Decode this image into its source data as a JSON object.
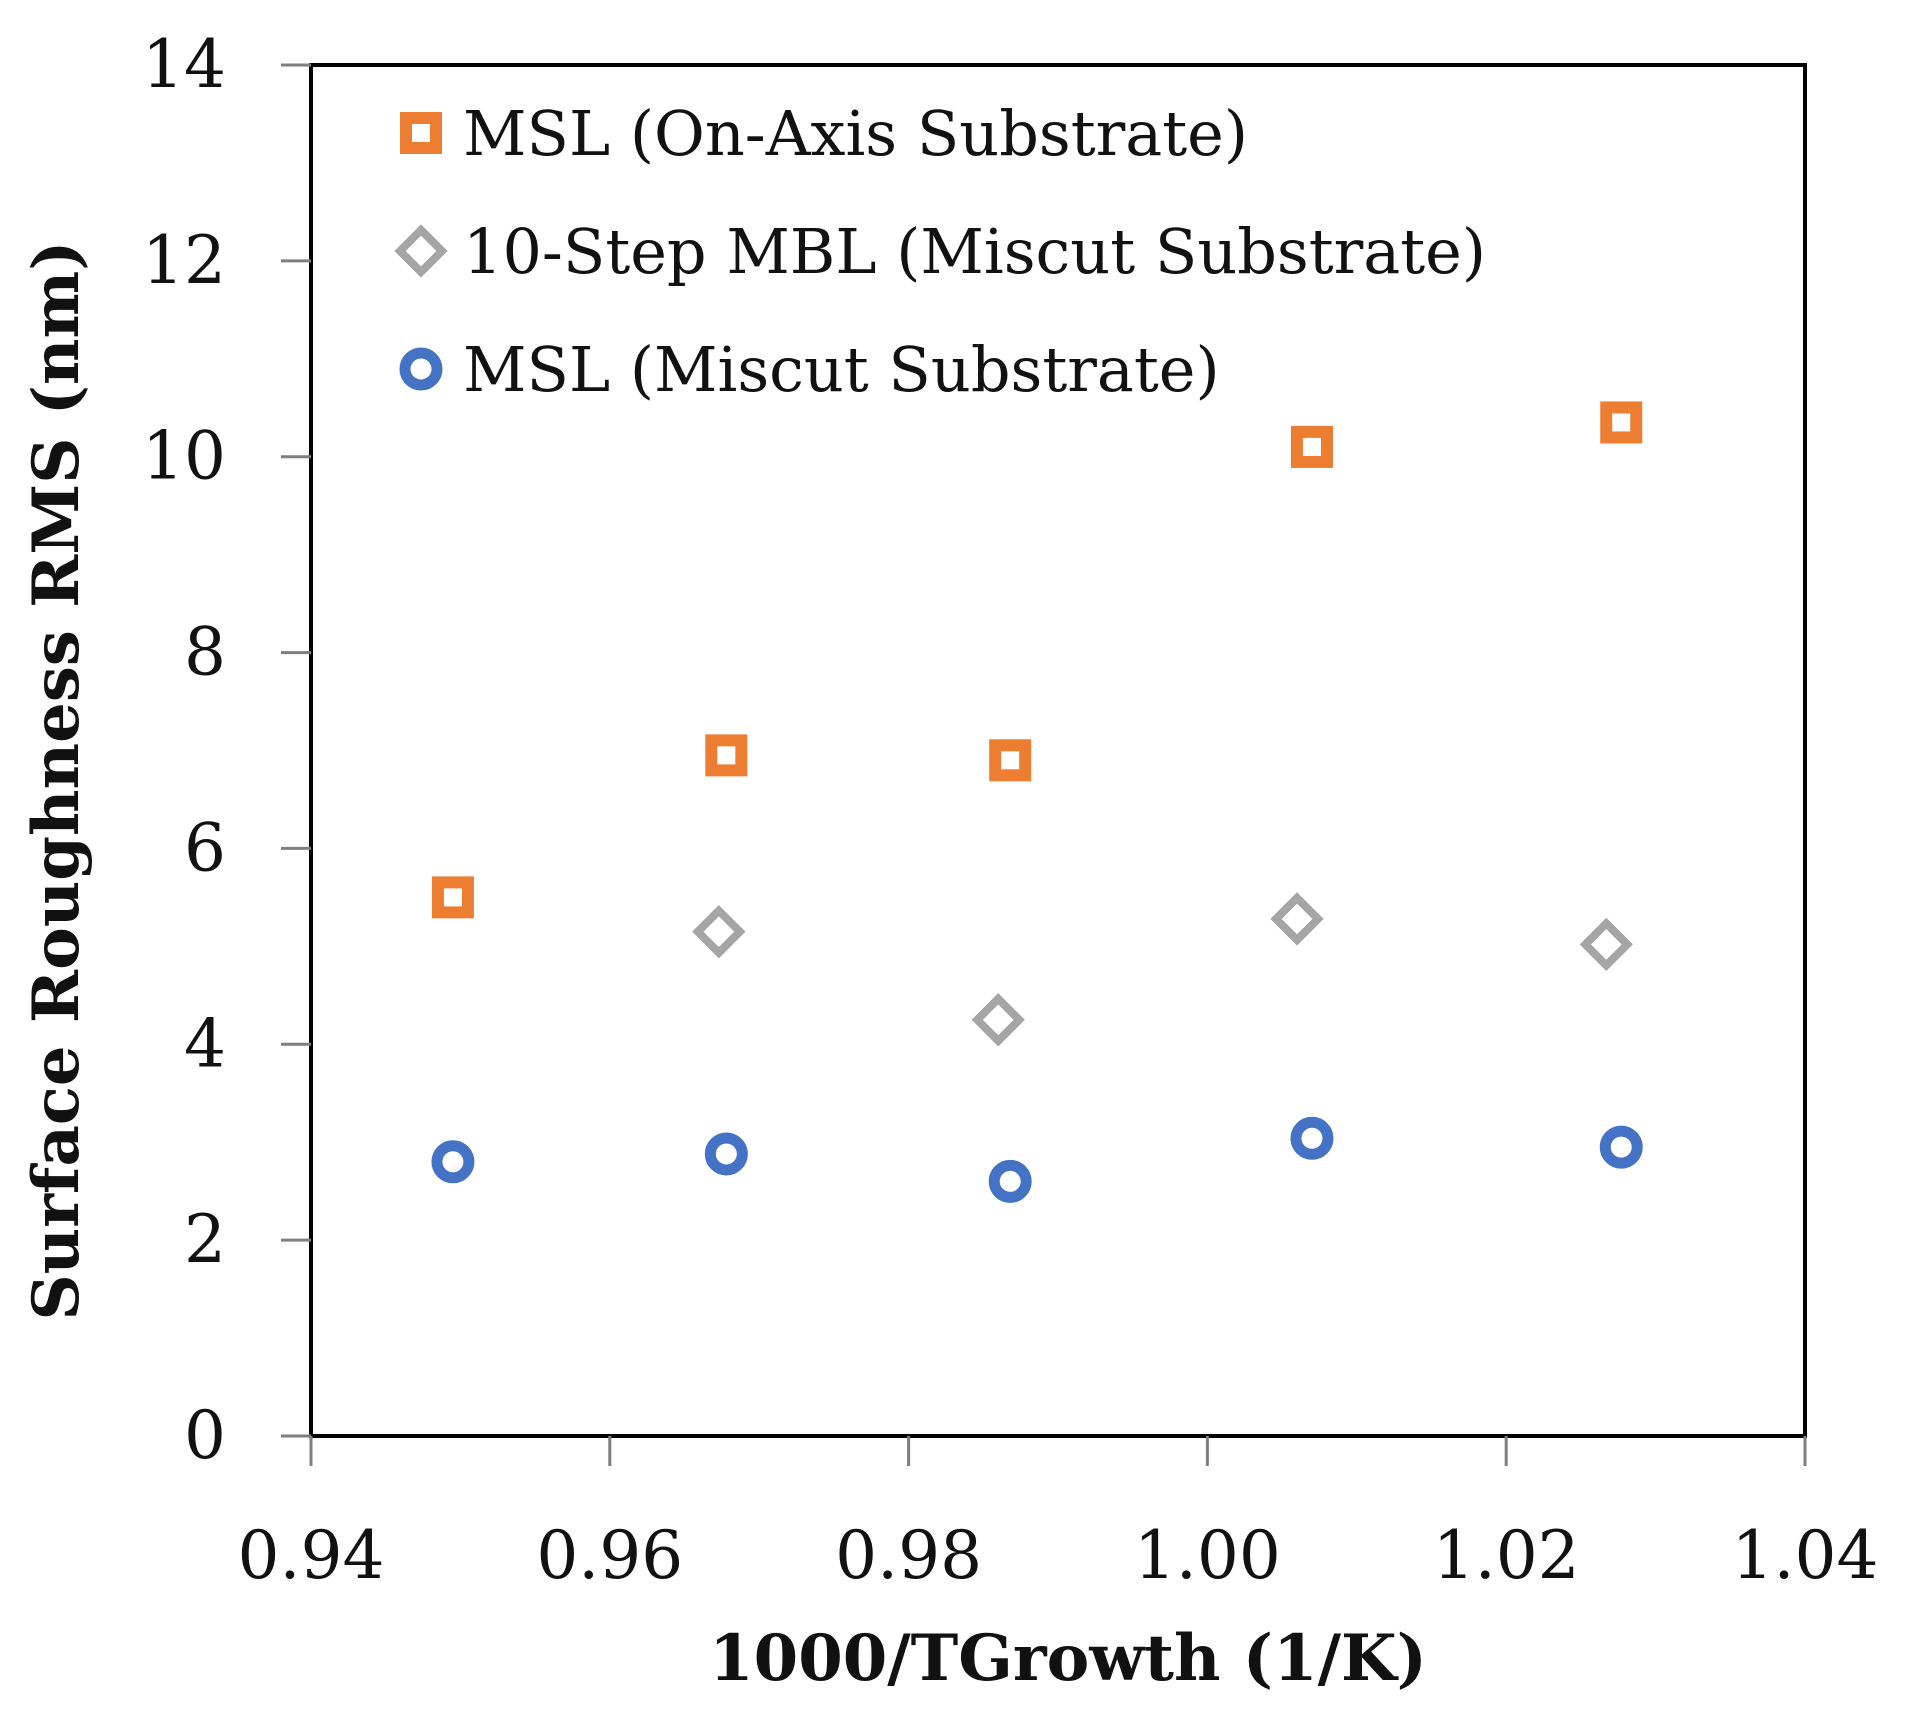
{
  "chart_data": {
    "type": "scatter",
    "title": "",
    "xlabel": "1000/TGrowth (1/K)",
    "ylabel": "Surface Roughness RMS (nm)",
    "xlim": [
      0.94,
      1.04
    ],
    "ylim": [
      0,
      14
    ],
    "xticks": [
      "0.94",
      "0.96",
      "0.98",
      "1.00",
      "1.02",
      "1.04"
    ],
    "yticks": [
      "0",
      "2",
      "4",
      "6",
      "8",
      "10",
      "12",
      "14"
    ],
    "grid": false,
    "legend_position": "top-left",
    "series": [
      {
        "name": "MSL (On-Axis Substrate)",
        "marker": "square",
        "color": "#ED7D31",
        "x": [
          0.9495,
          0.9678,
          0.9868,
          1.007,
          1.0277
        ],
        "y": [
          5.5,
          6.95,
          6.9,
          10.1,
          10.35
        ]
      },
      {
        "name": "10-Step MBL (Miscut Substrate)",
        "marker": "diamond",
        "color": "#A5A5A5",
        "x": [
          0.9673,
          0.986,
          1.006,
          1.0267
        ],
        "y": [
          5.15,
          4.25,
          5.28,
          5.02
        ]
      },
      {
        "name": "MSL (Miscut Substrate)",
        "marker": "circle",
        "color": "#4472C4",
        "x": [
          0.9495,
          0.9678,
          0.9868,
          1.007,
          1.0277
        ],
        "y": [
          2.8,
          2.88,
          2.6,
          3.04,
          2.95
        ]
      }
    ]
  }
}
